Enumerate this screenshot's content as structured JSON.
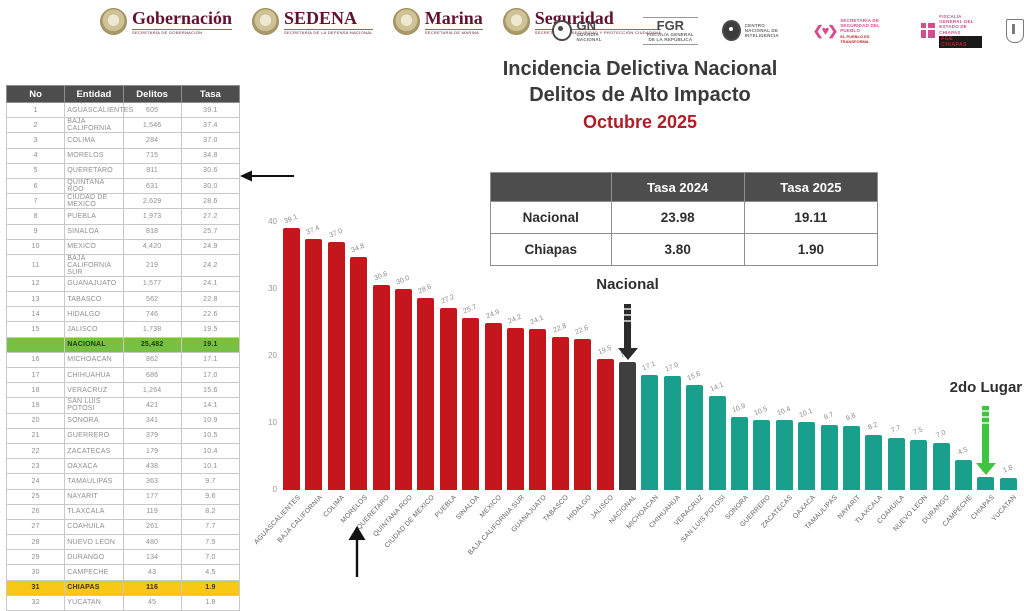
{
  "brand": {
    "maroon": "#611232",
    "title_red": "#b01d28",
    "bar_red": "#c4161c",
    "bar_teal": "#18a08d",
    "bar_dark": "#3f3f3f",
    "row_green": "#77c043",
    "row_yellow": "#f8c816",
    "table_header_gray": "#4d4d4d",
    "arrow_green": "#3ec43e",
    "arrow_black": "#2b2b2b"
  },
  "header": {
    "left_logos": [
      {
        "name": "Gobernación",
        "caption": "SECRETARÍA DE GOBERNACIÓN"
      },
      {
        "name": "SEDENA",
        "caption": "SECRETARÍA DE LA DEFENSA NACIONAL"
      },
      {
        "name": "Marina",
        "caption": "SECRETARÍA DE MARINA"
      },
      {
        "name": "Seguridad",
        "caption": "SECRETARÍA DE SEGURIDAD Y PROTECCIÓN CIUDADANA"
      }
    ],
    "right_logos": {
      "gn": {
        "abbr": "GN",
        "caption": "GUARDIA NACIONAL"
      },
      "fgr": {
        "abbr": "FGR",
        "caption": "FISCALÍA GENERAL DE LA REPÚBLICA"
      },
      "cni": {
        "caption": "CENTRO NACIONAL DE INTELIGENCIA"
      },
      "ssp": {
        "glyph": "❮♥❯",
        "caption": "SECRETARÍA DE SEGURIDAD DEL PUEBLO",
        "sub": "EL PUEBLO ES TRANSFORMA"
      },
      "fge": {
        "caption": "FISCALÍA GENERAL DEL ESTADO DE CHIAPAS",
        "band": "FGE CHIAPAS"
      }
    }
  },
  "title": {
    "line1": "Incidencia Delictiva Nacional",
    "line2": "Delitos de Alto Impacto",
    "line3": "Octubre 2025"
  },
  "rates_table": {
    "columns": [
      "",
      "Tasa 2024",
      "Tasa 2025"
    ],
    "rows": [
      {
        "label": "Nacional",
        "tasa_2024": "23.98",
        "tasa_2025": "19.11"
      },
      {
        "label": "Chiapas",
        "tasa_2024": "3.80",
        "tasa_2025": "1.90"
      }
    ]
  },
  "states_table": {
    "columns": [
      "No",
      "Entidad",
      "Delitos",
      "Tasa"
    ],
    "rows": [
      {
        "no": "1",
        "entidad": "AGUASCALIENTES",
        "delitos": "605",
        "tasa": "39.1"
      },
      {
        "no": "2",
        "entidad": "BAJA CALIFORNIA",
        "delitos": "1,546",
        "tasa": "37.4"
      },
      {
        "no": "3",
        "entidad": "COLIMA",
        "delitos": "284",
        "tasa": "37.0"
      },
      {
        "no": "4",
        "entidad": "MORELOS",
        "delitos": "715",
        "tasa": "34.8"
      },
      {
        "no": "5",
        "entidad": "QUERETARO",
        "delitos": "811",
        "tasa": "30.6"
      },
      {
        "no": "6",
        "entidad": "QUINTANA ROO",
        "delitos": "631",
        "tasa": "30.0"
      },
      {
        "no": "7",
        "entidad": "CIUDAD DE MEXICO",
        "delitos": "2,629",
        "tasa": "28.6"
      },
      {
        "no": "8",
        "entidad": "PUEBLA",
        "delitos": "1,973",
        "tasa": "27.2"
      },
      {
        "no": "9",
        "entidad": "SINALOA",
        "delitos": "818",
        "tasa": "25.7"
      },
      {
        "no": "10",
        "entidad": "MEXICO",
        "delitos": "4,420",
        "tasa": "24.9"
      },
      {
        "no": "11",
        "entidad": "BAJA CALIFORNIA SUR",
        "delitos": "219",
        "tasa": "24.2"
      },
      {
        "no": "12",
        "entidad": "GUANAJUATO",
        "delitos": "1,577",
        "tasa": "24.1"
      },
      {
        "no": "13",
        "entidad": "TABASCO",
        "delitos": "562",
        "tasa": "22.8"
      },
      {
        "no": "14",
        "entidad": "HIDALGO",
        "delitos": "746",
        "tasa": "22.6"
      },
      {
        "no": "15",
        "entidad": "JALISCO",
        "delitos": "1,738",
        "tasa": "19.5"
      },
      {
        "no": "",
        "entidad": "NACIONAL",
        "delitos": "25,482",
        "tasa": "19.1",
        "highlight": "green"
      },
      {
        "no": "16",
        "entidad": "MICHOACAN",
        "delitos": "862",
        "tasa": "17.1"
      },
      {
        "no": "17",
        "entidad": "CHIHUAHUA",
        "delitos": "686",
        "tasa": "17.0"
      },
      {
        "no": "18",
        "entidad": "VERACRUZ",
        "delitos": "1,264",
        "tasa": "15.6"
      },
      {
        "no": "19",
        "entidad": "SAN LUIS POTOSI",
        "delitos": "421",
        "tasa": "14.1"
      },
      {
        "no": "20",
        "entidad": "SONORA",
        "delitos": "341",
        "tasa": "10.9"
      },
      {
        "no": "21",
        "entidad": "GUERRERO",
        "delitos": "379",
        "tasa": "10.5"
      },
      {
        "no": "22",
        "entidad": "ZACATECAS",
        "delitos": "179",
        "tasa": "10.4"
      },
      {
        "no": "23",
        "entidad": "OAXACA",
        "delitos": "438",
        "tasa": "10.1"
      },
      {
        "no": "24",
        "entidad": "TAMAULIPAS",
        "delitos": "363",
        "tasa": "9.7"
      },
      {
        "no": "25",
        "entidad": "NAYARIT",
        "delitos": "177",
        "tasa": "9.6"
      },
      {
        "no": "26",
        "entidad": "TLAXCALA",
        "delitos": "119",
        "tasa": "8.2"
      },
      {
        "no": "27",
        "entidad": "COAHUILA",
        "delitos": "261",
        "tasa": "7.7"
      },
      {
        "no": "28",
        "entidad": "NUEVO LEON",
        "delitos": "480",
        "tasa": "7.5"
      },
      {
        "no": "29",
        "entidad": "DURANGO",
        "delitos": "134",
        "tasa": "7.0"
      },
      {
        "no": "30",
        "entidad": "CAMPECHE",
        "delitos": "43",
        "tasa": "4.5"
      },
      {
        "no": "31",
        "entidad": "CHIAPAS",
        "delitos": "116",
        "tasa": "1.9",
        "highlight": "yellow"
      },
      {
        "no": "32",
        "entidad": "YUCATAN",
        "delitos": "45",
        "tasa": "1.8"
      }
    ]
  },
  "chart_data": {
    "type": "bar",
    "title": "",
    "xlabel": "",
    "ylabel": "",
    "ylim": [
      0,
      40
    ],
    "yticks": [
      0,
      10,
      20,
      30,
      40
    ],
    "grid": false,
    "legend": false,
    "categories": [
      "AGUASCALIENTES",
      "BAJA CALIFORNIA",
      "COLIMA",
      "MORELOS",
      "QUERETARO",
      "QUINTANA ROO",
      "CIUDAD DE MEXICO",
      "PUEBLA",
      "SINALOA",
      "MEXICO",
      "BAJA CALIFORNIA SUR",
      "GUANAJUATO",
      "TABASCO",
      "HIDALGO",
      "JALISCO",
      "NACIONAL",
      "MICHOACAN",
      "CHIHUAHUA",
      "VERACRUZ",
      "SAN LUIS POTOSI",
      "SONORA",
      "GUERRERO",
      "ZACATECAS",
      "OAXACA",
      "TAMAULIPAS",
      "NAYARIT",
      "TLAXCALA",
      "COAHUILA",
      "NUEVO LEON",
      "DURANGO",
      "CAMPECHE",
      "CHIAPAS",
      "YUCATAN"
    ],
    "values": [
      39.1,
      37.4,
      37.0,
      34.8,
      30.6,
      30.0,
      28.6,
      27.2,
      25.7,
      24.9,
      24.2,
      24.1,
      22.8,
      22.6,
      19.5,
      19.1,
      17.1,
      17.0,
      15.6,
      14.1,
      10.9,
      10.5,
      10.4,
      10.1,
      9.7,
      9.6,
      8.2,
      7.7,
      7.5,
      7.0,
      4.5,
      1.9,
      1.8
    ],
    "national_index": 15,
    "colors": {
      "above_national": "#c4161c",
      "national": "#3f3f3f",
      "below_national": "#18a08d"
    },
    "annotations": [
      {
        "text": "Nacional",
        "target_index": 15,
        "arrow_color": "#2b2b2b"
      },
      {
        "text": "2do Lugar",
        "target_index": 31,
        "arrow_color": "#3ec43e"
      }
    ]
  }
}
